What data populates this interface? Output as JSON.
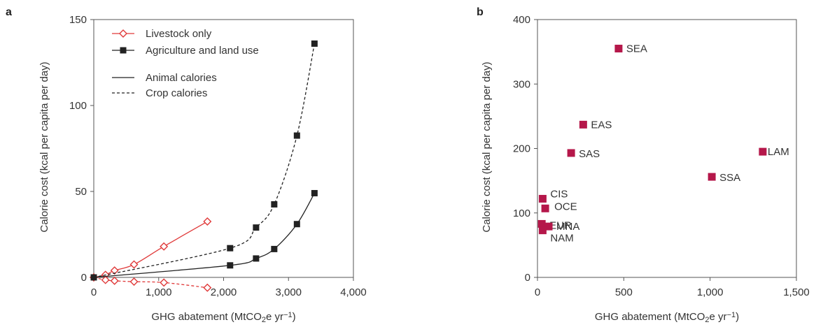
{
  "chart_data": [
    {
      "panel": "a",
      "type": "line",
      "xlabel_main": "GHG abatement (MtCO",
      "xlabel_sub": "2",
      "xlabel_mid": "e yr",
      "xlabel_sup": "−1",
      "xlabel_end": ")",
      "ylabel": "Calorie cost (kcal per capita per day)",
      "xlim": [
        0,
        4000
      ],
      "ylim": [
        0,
        150
      ],
      "xticks": [
        0,
        1000,
        2000,
        3000,
        4000
      ],
      "xtick_labels": [
        "0",
        "1,000",
        "2,000",
        "3,000",
        "4,000"
      ],
      "yticks": [
        0,
        50,
        100,
        150
      ],
      "ytick_labels": [
        "0",
        "50",
        "100",
        "150"
      ],
      "legend": {
        "position": "top-left",
        "entries": [
          {
            "label": "Livestock only",
            "marker": "diamond-open",
            "color": "#e03a3a"
          },
          {
            "label": "Agriculture and land use",
            "marker": "square-filled",
            "color": "#222222"
          },
          {
            "label": "Animal calories",
            "linestyle": "solid",
            "color": "#222222"
          },
          {
            "label": "Crop calories",
            "linestyle": "dashed",
            "color": "#222222"
          }
        ]
      },
      "series": [
        {
          "group": "Livestock only",
          "calories": "Animal",
          "linestyle": "solid",
          "marker": "diamond-open",
          "color": "#e03a3a",
          "x": [
            0,
            180,
            320,
            620,
            1080,
            1750
          ],
          "y": [
            0,
            1.5,
            4,
            7.5,
            18,
            32.5
          ]
        },
        {
          "group": "Livestock only",
          "calories": "Crop",
          "linestyle": "dashed",
          "marker": "diamond-open",
          "color": "#e03a3a",
          "x": [
            0,
            180,
            320,
            620,
            1080,
            1750
          ],
          "y": [
            0,
            -1.5,
            -2,
            -2.5,
            -3,
            -6
          ]
        },
        {
          "group": "Agriculture and land use",
          "calories": "Animal",
          "linestyle": "solid",
          "marker": "square-filled",
          "color": "#222222",
          "x": [
            0,
            2100,
            2500,
            2780,
            3130,
            3400
          ],
          "y": [
            0,
            7,
            11,
            16.5,
            31,
            49
          ]
        },
        {
          "group": "Agriculture and land use",
          "calories": "Crop",
          "linestyle": "dashed",
          "marker": "square-filled",
          "color": "#222222",
          "x": [
            0,
            2100,
            2500,
            2780,
            3130,
            3400
          ],
          "y": [
            0,
            17,
            29,
            42.5,
            82.5,
            136
          ]
        }
      ]
    },
    {
      "panel": "b",
      "type": "scatter",
      "xlabel_main": "GHG abatement (MtCO",
      "xlabel_sub": "2",
      "xlabel_mid": "e yr",
      "xlabel_sup": "−1",
      "xlabel_end": ")",
      "ylabel": "Calorie cost (kcal per capita per day)",
      "xlim": [
        0,
        1500
      ],
      "ylim": [
        0,
        400
      ],
      "xticks": [
        0,
        500,
        1000,
        1500
      ],
      "xtick_labels": [
        "0",
        "500",
        "1,000",
        "1,500"
      ],
      "yticks": [
        0,
        100,
        200,
        300,
        400
      ],
      "ytick_labels": [
        "0",
        "100",
        "200",
        "300",
        "400"
      ],
      "marker_color": "#b5174a",
      "points": [
        {
          "label": "SEA",
          "x": 470,
          "y": 355
        },
        {
          "label": "EAS",
          "x": 265,
          "y": 237
        },
        {
          "label": "SAS",
          "x": 195,
          "y": 193
        },
        {
          "label": "LAM",
          "x": 1305,
          "y": 195
        },
        {
          "label": "SSA",
          "x": 1010,
          "y": 156
        },
        {
          "label": "CIS",
          "x": 30,
          "y": 122
        },
        {
          "label": "OCE",
          "x": 45,
          "y": 107
        },
        {
          "label": "EUR",
          "x": 25,
          "y": 83
        },
        {
          "label": "MNA",
          "x": 65,
          "y": 79
        },
        {
          "label": "NAM",
          "x": 30,
          "y": 73
        }
      ]
    }
  ]
}
